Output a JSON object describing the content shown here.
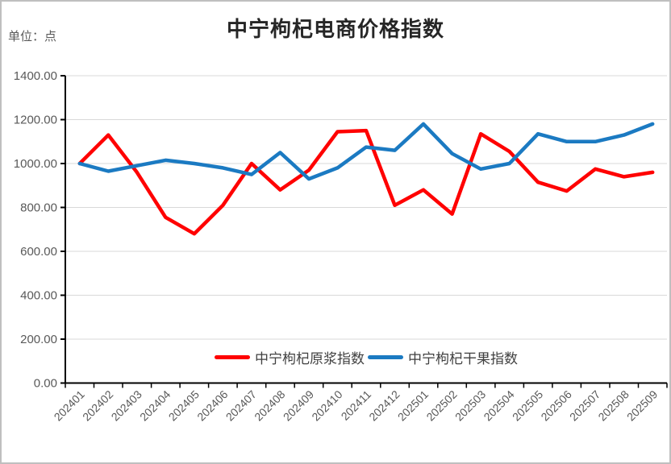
{
  "chart": {
    "title": "中宁枸杞电商价格指数",
    "unit_label": "单位：点"
  },
  "colors": {
    "series_red": "#FF0000",
    "series_blue": "#1B7AC2",
    "axis": "#000000",
    "grid": "#D9D9D9",
    "tick_label": "#595959",
    "legend_text": "#404040",
    "title_text": "#262626",
    "frame_border": "#BFBFBF"
  },
  "chart_data": {
    "type": "line",
    "title": "中宁枸杞电商价格指数",
    "unit": "点",
    "grid": true,
    "legend_position": "bottom-inside",
    "ylim": [
      0,
      1400
    ],
    "yticks": [
      "0.00",
      "200.00",
      "400.00",
      "600.00",
      "800.00",
      "1000.00",
      "1200.00",
      "1400.00"
    ],
    "categories": [
      "202401",
      "202402",
      "202403",
      "202404",
      "202405",
      "202406",
      "202407",
      "202408",
      "202409",
      "202410",
      "202411",
      "202412",
      "202501",
      "202502",
      "202503",
      "202504",
      "202505",
      "202506",
      "202507",
      "202508",
      "202509"
    ],
    "series": [
      {
        "name": "中宁枸杞原浆指数",
        "color": "#FF0000",
        "values": [
          1000,
          1130,
          960,
          755,
          680,
          810,
          1000,
          880,
          970,
          1145,
          1150,
          810,
          880,
          770,
          1135,
          1055,
          915,
          875,
          975,
          940,
          960
        ]
      },
      {
        "name": "中宁枸杞干果指数",
        "color": "#1B7AC2",
        "values": [
          1000,
          965,
          990,
          1015,
          1000,
          980,
          950,
          1050,
          930,
          980,
          1075,
          1060,
          1180,
          1045,
          975,
          1000,
          1135,
          1100,
          1100,
          1130,
          1180
        ]
      }
    ]
  }
}
